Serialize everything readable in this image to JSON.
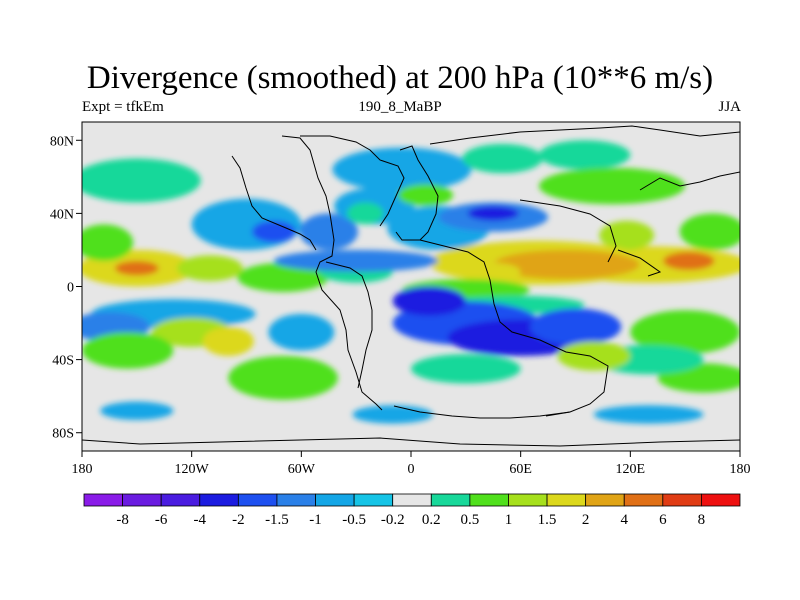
{
  "title": "Divergence (smoothed) at 200 hPa (10**6 m/s)",
  "subtitle_left": "Expt = tfkEm",
  "subtitle_center": "190_8_MaBP",
  "subtitle_right": "JJA",
  "colors": {
    "land_outline": "#000000",
    "near_zero": "#e6e6e6",
    "frame": "#000000"
  },
  "chart_data": {
    "type": "heatmap",
    "title": "Divergence (smoothed) at 200 hPa (10**6 m/s)",
    "projection": "cylindrical-equidistant",
    "xlim": [
      -180,
      180
    ],
    "ylim": [
      -90,
      90
    ],
    "x_ticks": [
      {
        "value": -180,
        "label": "180"
      },
      {
        "value": -120,
        "label": "120W"
      },
      {
        "value": -60,
        "label": "60W"
      },
      {
        "value": 0,
        "label": "0"
      },
      {
        "value": 60,
        "label": "60E"
      },
      {
        "value": 120,
        "label": "120E"
      },
      {
        "value": 180,
        "label": "180"
      }
    ],
    "y_ticks": [
      {
        "value": 80,
        "label": "80N"
      },
      {
        "value": 40,
        "label": "40N"
      },
      {
        "value": 0,
        "label": "0"
      },
      {
        "value": -40,
        "label": "40S"
      },
      {
        "value": -80,
        "label": "80S"
      }
    ],
    "colorbar": {
      "levels": [
        "-8",
        "-6",
        "-4",
        "-2",
        "-1.5",
        "-1",
        "-0.5",
        "-0.2",
        "0.2",
        "0.5",
        "1",
        "1.5",
        "2",
        "4",
        "6",
        "8"
      ],
      "colors": [
        "#8a1be8",
        "#6a1be0",
        "#4a1ce0",
        "#1c1ce0",
        "#1e50f0",
        "#2a80e8",
        "#14a6e6",
        "#16c4e6",
        "#e6e6e6",
        "#18d89a",
        "#50e01c",
        "#a6e01c",
        "#dcd81c",
        "#e0a416",
        "#e07016",
        "#e03c14",
        "#ee1010"
      ],
      "placement": "bottom"
    },
    "features": [
      {
        "lon": 130,
        "lat": 12,
        "rx": 55,
        "ry": 10,
        "level": 12
      },
      {
        "lon": 152,
        "lat": 14,
        "rx": 14,
        "ry": 5,
        "level": 14
      },
      {
        "lon": 118,
        "lat": 28,
        "rx": 15,
        "ry": 8,
        "level": 11
      },
      {
        "lon": 165,
        "lat": 30,
        "rx": 18,
        "ry": 10,
        "level": 10
      },
      {
        "lon": -150,
        "lat": 10,
        "rx": 32,
        "ry": 10,
        "level": 12
      },
      {
        "lon": -150,
        "lat": 10,
        "rx": 12,
        "ry": 4,
        "level": 14
      },
      {
        "lon": -110,
        "lat": 10,
        "rx": 18,
        "ry": 7,
        "level": 11
      },
      {
        "lon": -168,
        "lat": 24,
        "rx": 16,
        "ry": 10,
        "level": 10
      },
      {
        "lon": -70,
        "lat": 5,
        "rx": 25,
        "ry": 8,
        "level": 10
      },
      {
        "lon": -30,
        "lat": 8,
        "rx": 20,
        "ry": 6,
        "level": 9
      },
      {
        "lon": 70,
        "lat": 13,
        "rx": 60,
        "ry": 12,
        "level": 12
      },
      {
        "lon": 85,
        "lat": 12,
        "rx": 40,
        "ry": 8,
        "level": 13
      },
      {
        "lon": 45,
        "lat": 8,
        "rx": 15,
        "ry": 5,
        "level": 12
      },
      {
        "lon": 30,
        "lat": -2,
        "rx": 35,
        "ry": 6,
        "level": 10
      },
      {
        "lon": 55,
        "lat": -10,
        "rx": 40,
        "ry": 5,
        "level": 9
      },
      {
        "lon": -90,
        "lat": 34,
        "rx": 30,
        "ry": 14,
        "level": 6
      },
      {
        "lon": -75,
        "lat": 30,
        "rx": 12,
        "ry": 6,
        "level": 4
      },
      {
        "lon": -45,
        "lat": 30,
        "rx": 16,
        "ry": 10,
        "level": 5
      },
      {
        "lon": -20,
        "lat": 44,
        "rx": 22,
        "ry": 10,
        "level": 6
      },
      {
        "lon": -25,
        "lat": 40,
        "rx": 10,
        "ry": 6,
        "level": 9
      },
      {
        "lon": 15,
        "lat": 32,
        "rx": 28,
        "ry": 12,
        "level": 6
      },
      {
        "lon": 45,
        "lat": 38,
        "rx": 30,
        "ry": 8,
        "level": 5
      },
      {
        "lon": 45,
        "lat": 40,
        "rx": 14,
        "ry": 4,
        "level": 3
      },
      {
        "lon": -5,
        "lat": 64,
        "rx": 38,
        "ry": 12,
        "level": 6
      },
      {
        "lon": 8,
        "lat": 50,
        "rx": 15,
        "ry": 6,
        "level": 10
      },
      {
        "lon": 50,
        "lat": 70,
        "rx": 22,
        "ry": 8,
        "level": 9
      },
      {
        "lon": 95,
        "lat": 72,
        "rx": 25,
        "ry": 8,
        "level": 9
      },
      {
        "lon": 110,
        "lat": 55,
        "rx": 40,
        "ry": 10,
        "level": 10
      },
      {
        "lon": -150,
        "lat": 58,
        "rx": 35,
        "ry": 12,
        "level": 9
      },
      {
        "lon": -30,
        "lat": 14,
        "rx": 45,
        "ry": 6,
        "level": 5
      },
      {
        "lon": 30,
        "lat": -20,
        "rx": 40,
        "ry": 12,
        "level": 4
      },
      {
        "lon": 60,
        "lat": -28,
        "rx": 40,
        "ry": 10,
        "level": 3
      },
      {
        "lon": 10,
        "lat": -8,
        "rx": 20,
        "ry": 8,
        "level": 3
      },
      {
        "lon": 90,
        "lat": -22,
        "rx": 25,
        "ry": 10,
        "level": 4
      },
      {
        "lon": -130,
        "lat": -15,
        "rx": 45,
        "ry": 8,
        "level": 6
      },
      {
        "lon": -165,
        "lat": -22,
        "rx": 22,
        "ry": 8,
        "level": 5
      },
      {
        "lon": -120,
        "lat": -25,
        "rx": 22,
        "ry": 8,
        "level": 11
      },
      {
        "lon": -100,
        "lat": -30,
        "rx": 14,
        "ry": 8,
        "level": 12
      },
      {
        "lon": -155,
        "lat": -35,
        "rx": 25,
        "ry": 10,
        "level": 10
      },
      {
        "lon": -60,
        "lat": -25,
        "rx": 18,
        "ry": 10,
        "level": 6
      },
      {
        "lon": -70,
        "lat": -50,
        "rx": 30,
        "ry": 12,
        "level": 10
      },
      {
        "lon": 150,
        "lat": -25,
        "rx": 30,
        "ry": 12,
        "level": 10
      },
      {
        "lon": 160,
        "lat": -50,
        "rx": 25,
        "ry": 8,
        "level": 10
      },
      {
        "lon": 130,
        "lat": -40,
        "rx": 30,
        "ry": 8,
        "level": 9
      },
      {
        "lon": 100,
        "lat": -38,
        "rx": 20,
        "ry": 8,
        "level": 11
      },
      {
        "lon": 30,
        "lat": -45,
        "rx": 30,
        "ry": 8,
        "level": 9
      },
      {
        "lon": -150,
        "lat": -68,
        "rx": 20,
        "ry": 5,
        "level": 6
      },
      {
        "lon": -10,
        "lat": -70,
        "rx": 22,
        "ry": 5,
        "level": 6
      },
      {
        "lon": 130,
        "lat": -70,
        "rx": 30,
        "ry": 5,
        "level": 6
      }
    ]
  }
}
